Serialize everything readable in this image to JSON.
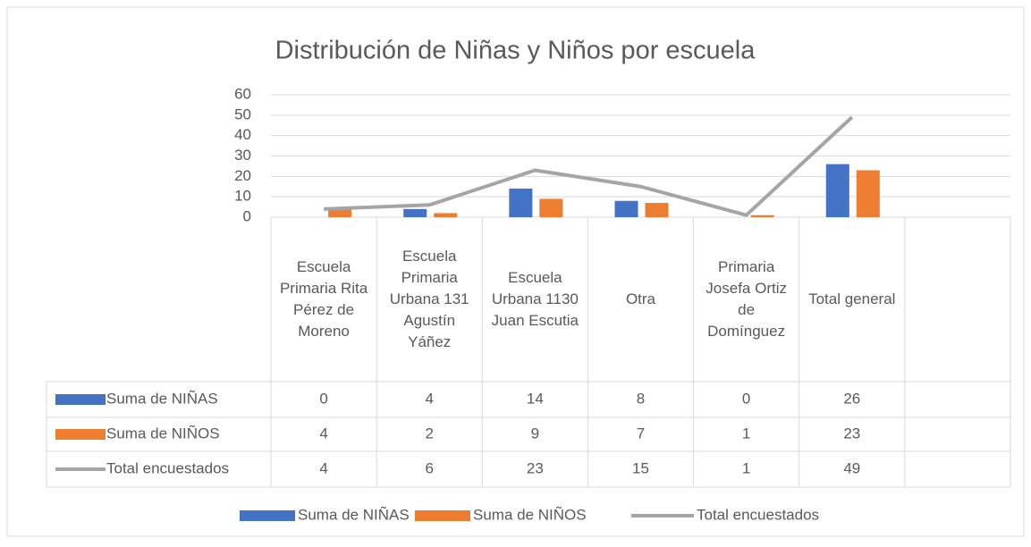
{
  "chart_data": {
    "type": "bar",
    "title": "Distribución de Niñas y Niños por escuela",
    "categories": [
      "Escuela Primaria Rita Pérez de Moreno",
      "Escuela Primaria Urbana 131 Agustín Yáñez",
      "Escuela Urbana 1130 Juan Escutia",
      "Otra",
      "Primaria Josefa Ortiz de Domínguez",
      "Total general",
      null
    ],
    "series": [
      {
        "name": "Suma de NIÑAS",
        "color": "#4472c4",
        "type": "bar",
        "values": [
          0,
          4,
          14,
          8,
          0,
          26,
          null
        ]
      },
      {
        "name": "Suma de NIÑOS",
        "color": "#ed7d31",
        "type": "bar",
        "values": [
          4,
          2,
          9,
          7,
          1,
          23,
          null
        ]
      },
      {
        "name": "Total encuestados",
        "color": "#a5a5a5",
        "type": "line",
        "values": [
          4,
          6,
          23,
          15,
          1,
          49,
          null
        ]
      }
    ],
    "ylim": [
      0,
      60
    ],
    "yticks": [
      0,
      10,
      20,
      30,
      40,
      50,
      60
    ],
    "grid": true,
    "data_table": true,
    "legend": "bottom"
  }
}
